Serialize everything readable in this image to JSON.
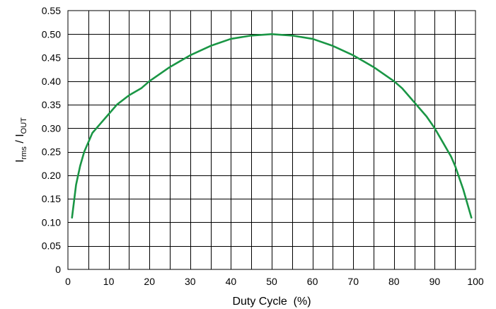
{
  "chart_data": {
    "type": "line",
    "title": "",
    "xlabel": "Duty Cycle  (%)",
    "ylabel": {
      "main": "I",
      "sub1": "rms",
      "sep": " / I",
      "sub2": "OUT"
    },
    "xlim": [
      0,
      100
    ],
    "ylim": [
      0,
      0.55
    ],
    "xticks": [
      0,
      10,
      20,
      30,
      40,
      50,
      60,
      70,
      80,
      90,
      100
    ],
    "xtick_labels": [
      "0",
      "10",
      "20",
      "30",
      "40",
      "50",
      "60",
      "70",
      "80",
      "90",
      "100"
    ],
    "yticks": [
      0,
      0.05,
      0.1,
      0.15,
      0.2,
      0.25,
      0.3,
      0.35,
      0.4,
      0.45,
      0.5,
      0.55
    ],
    "ytick_labels": [
      "0",
      "0.05",
      "0.10",
      "0.15",
      "0.20",
      "0.25",
      "0.30",
      "0.35",
      "0.40",
      "0.45",
      "0.50",
      "0.55"
    ],
    "x_grid_step": 5,
    "grid": true,
    "series": [
      {
        "color": "#1a9645",
        "x": [
          1,
          2,
          3,
          4,
          5,
          6,
          8,
          10,
          12,
          15,
          18,
          20,
          25,
          30,
          35,
          40,
          45,
          50,
          55,
          60,
          65,
          70,
          75,
          80,
          82,
          85,
          88,
          90,
          92,
          94,
          95,
          96,
          97,
          98,
          99
        ],
        "values": [
          0.11,
          0.18,
          0.22,
          0.25,
          0.27,
          0.29,
          0.31,
          0.33,
          0.35,
          0.37,
          0.385,
          0.4,
          0.43,
          0.455,
          0.475,
          0.49,
          0.497,
          0.5,
          0.497,
          0.49,
          0.475,
          0.455,
          0.43,
          0.4,
          0.385,
          0.355,
          0.325,
          0.3,
          0.27,
          0.24,
          0.22,
          0.195,
          0.17,
          0.14,
          0.11
        ]
      }
    ]
  }
}
